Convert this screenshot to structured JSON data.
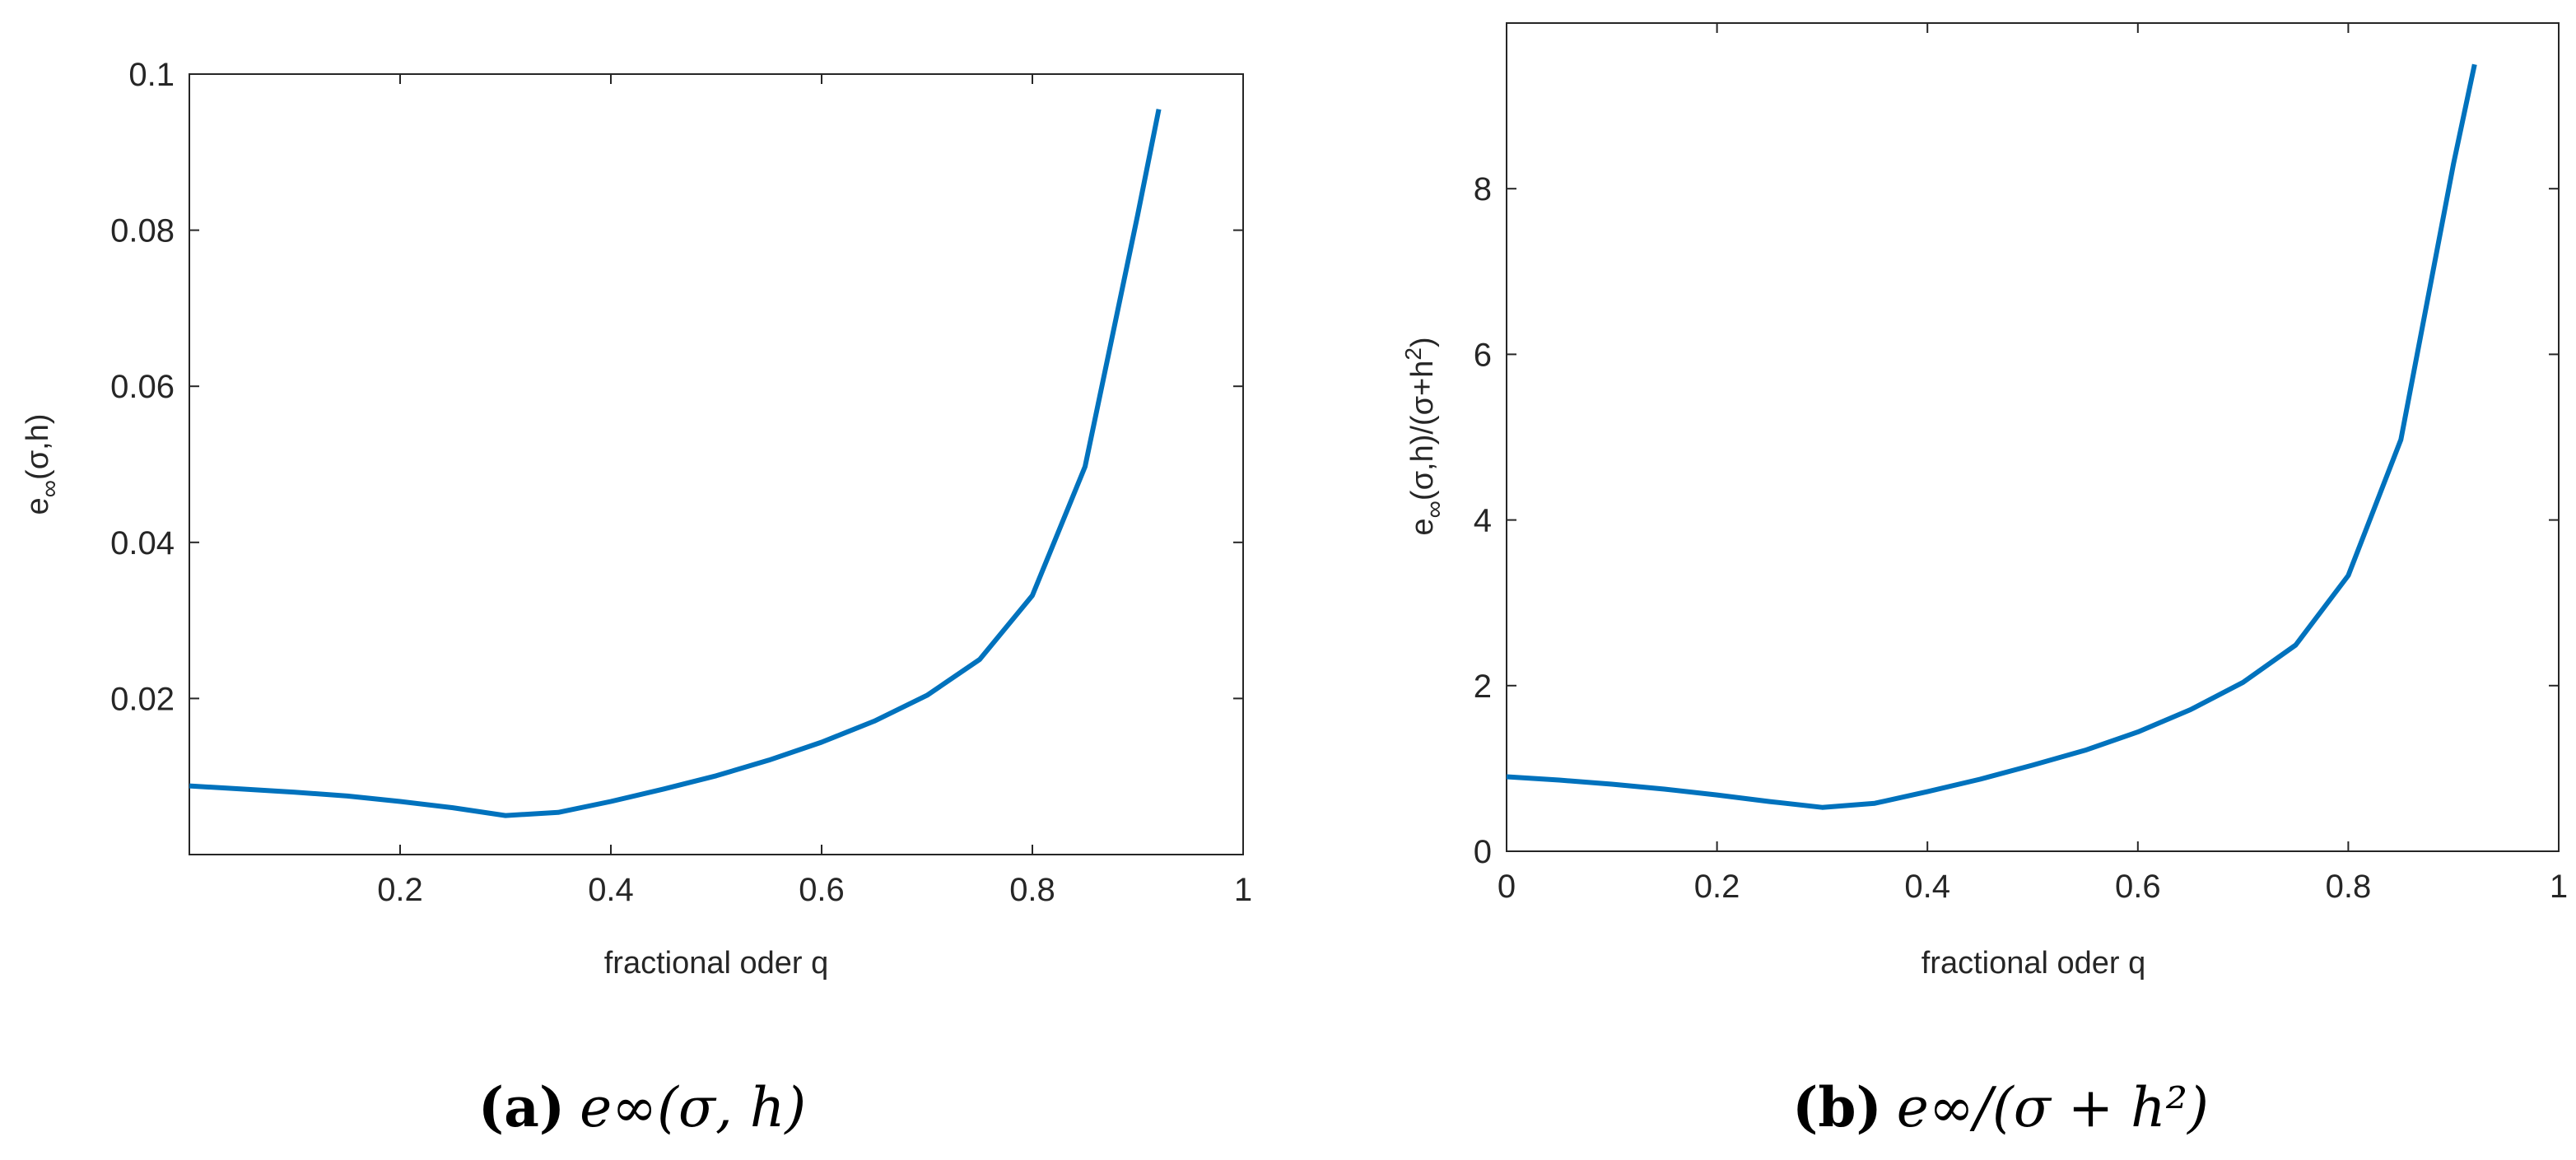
{
  "chart_data": [
    {
      "type": "line",
      "xlabel": "fractional oder q",
      "ylabel": "e",
      "ylabel_sub": "∞",
      "ylabel_tail": "(σ,h)",
      "xlim": [
        0,
        1
      ],
      "ylim": [
        0.0,
        0.1
      ],
      "xticks": [
        0.2,
        0.4,
        0.6,
        0.8,
        1
      ],
      "xtick_labels": [
        "0.2",
        "0.4",
        "0.6",
        "0.8",
        "1"
      ],
      "yticks": [
        0.02,
        0.04,
        0.06,
        0.08,
        0.1
      ],
      "ytick_labels": [
        "0.02",
        "0.04",
        "0.06",
        "0.08",
        "0.1"
      ],
      "series": [
        {
          "name": "e_inf",
          "color": "#0072BD",
          "x": [
            0.0,
            0.05,
            0.1,
            0.15,
            0.2,
            0.25,
            0.3,
            0.35,
            0.4,
            0.45,
            0.5,
            0.55,
            0.6,
            0.65,
            0.7,
            0.75,
            0.8,
            0.85,
            0.9,
            0.92
          ],
          "y": [
            0.0088,
            0.0084,
            0.008,
            0.0075,
            0.0068,
            0.006,
            0.005,
            0.0054,
            0.0068,
            0.0084,
            0.0101,
            0.0121,
            0.0144,
            0.0171,
            0.0204,
            0.025,
            0.0332,
            0.0497,
            0.082,
            0.0955
          ]
        }
      ],
      "caption_label": "(a)",
      "caption_math": "e∞(σ, h)"
    },
    {
      "type": "line",
      "xlabel": "fractional oder q",
      "ylabel": "e",
      "ylabel_sub": "∞",
      "ylabel_tail": "(σ,h)/(σ+h",
      "ylabel_sup": "2",
      "ylabel_end": ")",
      "xlim": [
        0,
        1
      ],
      "ylim": [
        0,
        10
      ],
      "xticks": [
        0,
        0.2,
        0.4,
        0.6,
        0.8,
        1
      ],
      "xtick_labels": [
        "0",
        "0.2",
        "0.4",
        "0.6",
        "0.8",
        "1"
      ],
      "yticks": [
        0,
        2,
        4,
        6,
        8
      ],
      "ytick_labels": [
        "0",
        "2",
        "4",
        "6",
        "8"
      ],
      "series": [
        {
          "name": "e_inf_ratio",
          "color": "#0072BD",
          "x": [
            0.0,
            0.05,
            0.1,
            0.15,
            0.2,
            0.25,
            0.3,
            0.35,
            0.4,
            0.45,
            0.5,
            0.55,
            0.6,
            0.65,
            0.7,
            0.75,
            0.8,
            0.85,
            0.9,
            0.92
          ],
          "y": [
            0.9,
            0.86,
            0.81,
            0.75,
            0.68,
            0.6,
            0.53,
            0.58,
            0.72,
            0.87,
            1.04,
            1.22,
            1.44,
            1.71,
            2.04,
            2.49,
            3.33,
            4.97,
            8.3,
            9.5
          ]
        }
      ],
      "caption_label": "(b)",
      "caption_math": "e∞/(σ + h²)"
    }
  ]
}
